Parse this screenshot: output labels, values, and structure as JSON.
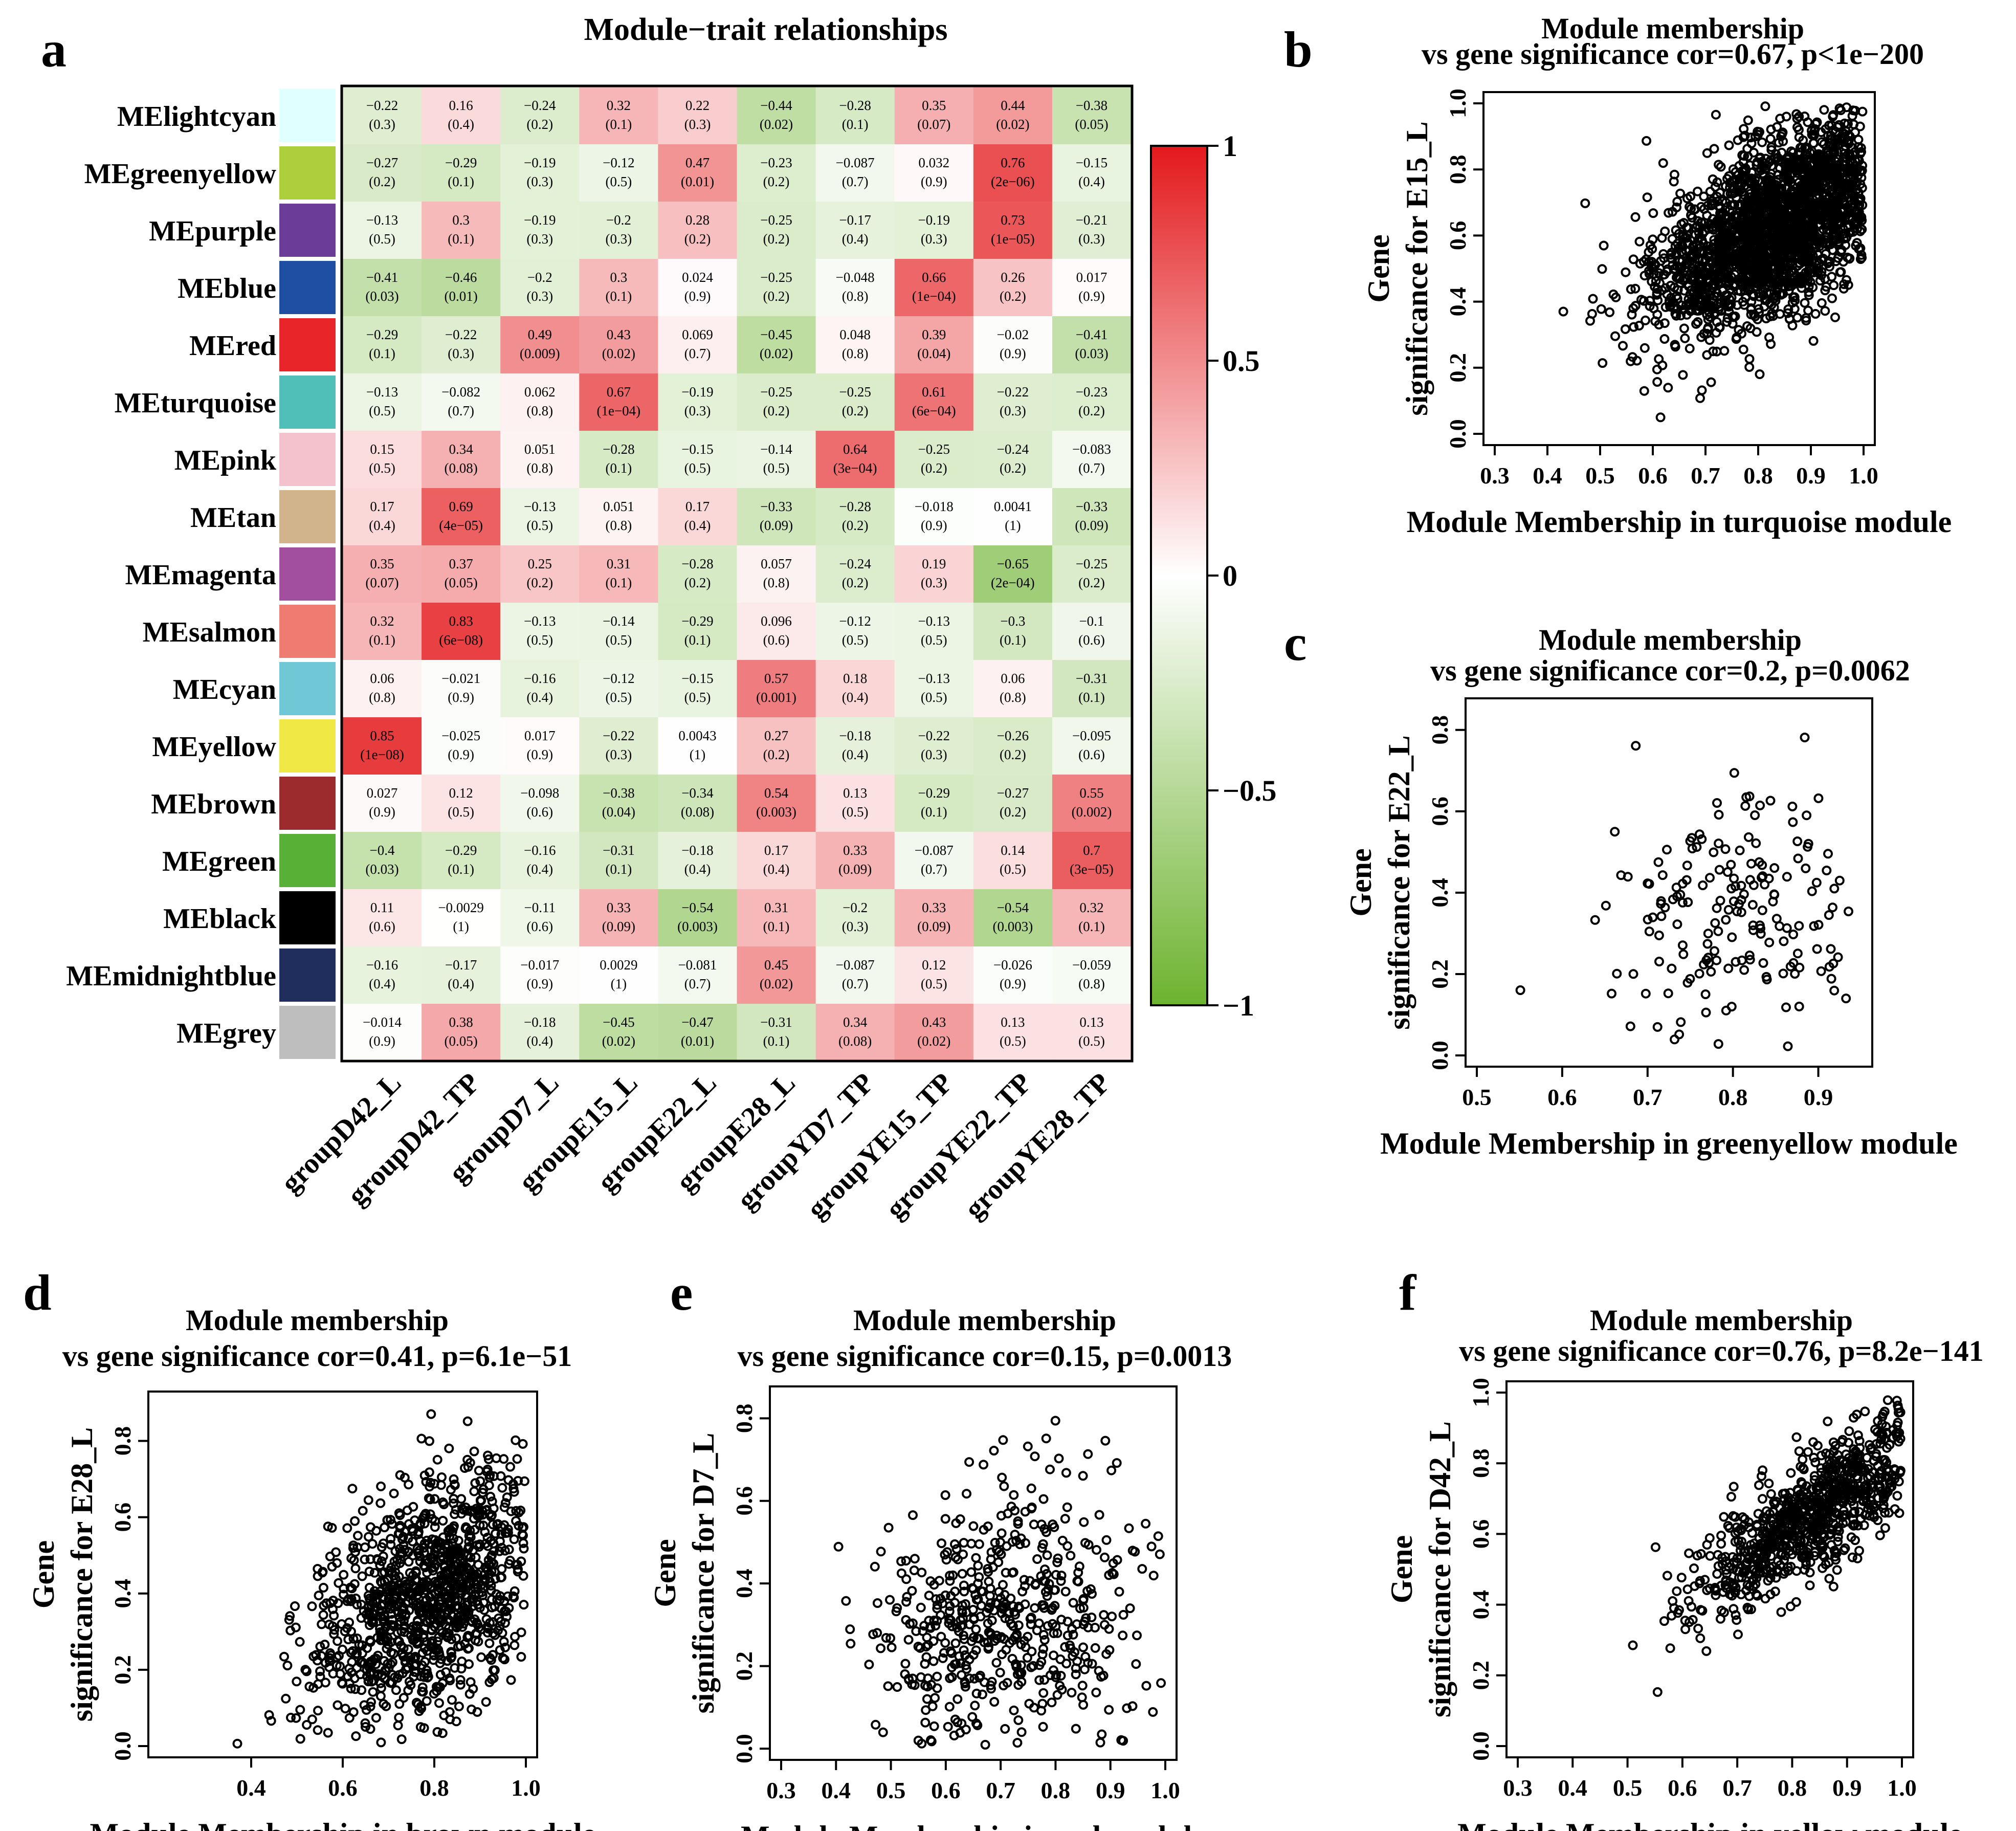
{
  "panels": {
    "a": {
      "label": "a",
      "title": "Module−trait relationships",
      "modules": [
        "MElightcyan",
        "MEgreenyellow",
        "MEpurple",
        "MEblue",
        "MEred",
        "MEturquoise",
        "MEpink",
        "MEtan",
        "MEmagenta",
        "MEsalmon",
        "MEcyan",
        "MEyellow",
        "MEbrown",
        "MEgreen",
        "MEblack",
        "MEmidnightblue",
        "MEgrey"
      ],
      "module_colors": [
        "#E0FFFF",
        "#ADCF3B",
        "#6B3D98",
        "#1E4FA2",
        "#E8262A",
        "#4FBFB8",
        "#F4C2CC",
        "#D1B48C",
        "#A24FA0",
        "#EE7C70",
        "#70C8D6",
        "#F0E844",
        "#9B2B2D",
        "#58B036",
        "#000000",
        "#1F2E5C",
        "#BEBEBE"
      ],
      "traits": [
        "groupD42_L",
        "groupD42_TP",
        "groupD7_L",
        "groupE15_L",
        "groupE22_L",
        "groupE28_L",
        "groupYD7_TP",
        "groupYE15_TP",
        "groupYE22_TP",
        "groupYE28_TP"
      ],
      "cor": [
        [
          "−0.22",
          "0.16",
          "−0.24",
          "0.32",
          "0.22",
          "−0.44",
          "−0.28",
          "0.35",
          "0.44",
          "−0.38"
        ],
        [
          "−0.27",
          "−0.29",
          "−0.19",
          "−0.12",
          "0.47",
          "−0.23",
          "−0.087",
          "0.032",
          "0.76",
          "−0.15"
        ],
        [
          "−0.13",
          "0.3",
          "−0.19",
          "−0.2",
          "0.28",
          "−0.25",
          "−0.17",
          "−0.19",
          "0.73",
          "−0.21"
        ],
        [
          "−0.41",
          "−0.46",
          "−0.2",
          "0.3",
          "0.024",
          "−0.25",
          "−0.048",
          "0.66",
          "0.26",
          "0.017"
        ],
        [
          "−0.29",
          "−0.22",
          "0.49",
          "0.43",
          "0.069",
          "−0.45",
          "0.048",
          "0.39",
          "−0.02",
          "−0.41"
        ],
        [
          "−0.13",
          "−0.082",
          "0.062",
          "0.67",
          "−0.19",
          "−0.25",
          "−0.25",
          "0.61",
          "−0.22",
          "−0.23"
        ],
        [
          "0.15",
          "0.34",
          "0.051",
          "−0.28",
          "−0.15",
          "−0.14",
          "0.64",
          "−0.25",
          "−0.24",
          "−0.083"
        ],
        [
          "0.17",
          "0.69",
          "−0.13",
          "0.051",
          "0.17",
          "−0.33",
          "−0.28",
          "−0.018",
          "0.0041",
          "−0.33"
        ],
        [
          "0.35",
          "0.37",
          "0.25",
          "0.31",
          "−0.28",
          "0.057",
          "−0.24",
          "0.19",
          "−0.65",
          "−0.25"
        ],
        [
          "0.32",
          "0.83",
          "−0.13",
          "−0.14",
          "−0.29",
          "0.096",
          "−0.12",
          "−0.13",
          "−0.3",
          "−0.1"
        ],
        [
          "0.06",
          "−0.021",
          "−0.16",
          "−0.12",
          "−0.15",
          "0.57",
          "0.18",
          "−0.13",
          "0.06",
          "−0.31"
        ],
        [
          "0.85",
          "−0.025",
          "0.017",
          "−0.22",
          "0.0043",
          "0.27",
          "−0.18",
          "−0.22",
          "−0.26",
          "−0.095"
        ],
        [
          "0.027",
          "0.12",
          "−0.098",
          "−0.38",
          "−0.34",
          "0.54",
          "0.13",
          "−0.29",
          "−0.27",
          "0.55"
        ],
        [
          "−0.4",
          "−0.29",
          "−0.16",
          "−0.31",
          "−0.18",
          "0.17",
          "0.33",
          "−0.087",
          "0.14",
          "0.7"
        ],
        [
          "0.11",
          "−0.0029",
          "−0.11",
          "0.33",
          "−0.54",
          "0.31",
          "−0.2",
          "0.33",
          "−0.54",
          "0.32"
        ],
        [
          "−0.16",
          "−0.17",
          "−0.017",
          "0.0029",
          "−0.081",
          "0.45",
          "−0.087",
          "0.12",
          "−0.026",
          "−0.059"
        ],
        [
          "−0.014",
          "0.38",
          "−0.18",
          "−0.45",
          "−0.47",
          "−0.31",
          "0.34",
          "0.43",
          "0.13",
          "0.13"
        ]
      ],
      "pval": [
        [
          "(0.3)",
          "(0.4)",
          "(0.2)",
          "(0.1)",
          "(0.3)",
          "(0.02)",
          "(0.1)",
          "(0.07)",
          "(0.02)",
          "(0.05)"
        ],
        [
          "(0.2)",
          "(0.1)",
          "(0.3)",
          "(0.5)",
          "(0.01)",
          "(0.2)",
          "(0.7)",
          "(0.9)",
          "(2e−06)",
          "(0.4)"
        ],
        [
          "(0.5)",
          "(0.1)",
          "(0.3)",
          "(0.3)",
          "(0.2)",
          "(0.2)",
          "(0.4)",
          "(0.3)",
          "(1e−05)",
          "(0.3)"
        ],
        [
          "(0.03)",
          "(0.01)",
          "(0.3)",
          "(0.1)",
          "(0.9)",
          "(0.2)",
          "(0.8)",
          "(1e−04)",
          "(0.2)",
          "(0.9)"
        ],
        [
          "(0.1)",
          "(0.3)",
          "(0.009)",
          "(0.02)",
          "(0.7)",
          "(0.02)",
          "(0.8)",
          "(0.04)",
          "(0.9)",
          "(0.03)"
        ],
        [
          "(0.5)",
          "(0.7)",
          "(0.8)",
          "(1e−04)",
          "(0.3)",
          "(0.2)",
          "(0.2)",
          "(6e−04)",
          "(0.3)",
          "(0.2)"
        ],
        [
          "(0.5)",
          "(0.08)",
          "(0.8)",
          "(0.1)",
          "(0.5)",
          "(0.5)",
          "(3e−04)",
          "(0.2)",
          "(0.2)",
          "(0.7)"
        ],
        [
          "(0.4)",
          "(4e−05)",
          "(0.5)",
          "(0.8)",
          "(0.4)",
          "(0.09)",
          "(0.2)",
          "(0.9)",
          "(1)",
          "(0.09)"
        ],
        [
          "(0.07)",
          "(0.05)",
          "(0.2)",
          "(0.1)",
          "(0.2)",
          "(0.8)",
          "(0.2)",
          "(0.3)",
          "(2e−04)",
          "(0.2)"
        ],
        [
          "(0.1)",
          "(6e−08)",
          "(0.5)",
          "(0.5)",
          "(0.1)",
          "(0.6)",
          "(0.5)",
          "(0.5)",
          "(0.1)",
          "(0.6)"
        ],
        [
          "(0.8)",
          "(0.9)",
          "(0.4)",
          "(0.5)",
          "(0.5)",
          "(0.001)",
          "(0.4)",
          "(0.5)",
          "(0.8)",
          "(0.1)"
        ],
        [
          "(1e−08)",
          "(0.9)",
          "(0.9)",
          "(0.3)",
          "(1)",
          "(0.2)",
          "(0.4)",
          "(0.3)",
          "(0.2)",
          "(0.6)"
        ],
        [
          "(0.9)",
          "(0.5)",
          "(0.6)",
          "(0.04)",
          "(0.08)",
          "(0.003)",
          "(0.5)",
          "(0.1)",
          "(0.2)",
          "(0.002)"
        ],
        [
          "(0.03)",
          "(0.1)",
          "(0.4)",
          "(0.1)",
          "(0.4)",
          "(0.4)",
          "(0.09)",
          "(0.7)",
          "(0.5)",
          "(3e−05)"
        ],
        [
          "(0.6)",
          "(1)",
          "(0.6)",
          "(0.09)",
          "(0.003)",
          "(0.1)",
          "(0.3)",
          "(0.09)",
          "(0.003)",
          "(0.1)"
        ],
        [
          "(0.4)",
          "(0.4)",
          "(0.9)",
          "(1)",
          "(0.7)",
          "(0.02)",
          "(0.7)",
          "(0.5)",
          "(0.9)",
          "(0.8)"
        ],
        [
          "(0.9)",
          "(0.05)",
          "(0.4)",
          "(0.02)",
          "(0.01)",
          "(0.1)",
          "(0.08)",
          "(0.02)",
          "(0.5)",
          "(0.5)"
        ]
      ],
      "colorbar_ticks": [
        "1",
        "0.5",
        "0",
        "−0.5",
        "−1"
      ]
    },
    "b": {
      "label": "b",
      "title1": "Module membership",
      "title2": "vs gene significance cor=0.67, p<1e−200",
      "xlabel": "Module Membership in turquoise module",
      "ylabel1": "Gene",
      "ylabel2": "significance for E15_L",
      "xticks": [
        "0.3",
        "0.4",
        "0.5",
        "0.6",
        "0.7",
        "0.8",
        "0.9",
        "1.0"
      ],
      "yticks": [
        "0.0",
        "0.2",
        "0.4",
        "0.6",
        "0.8",
        "1.0"
      ]
    },
    "c": {
      "label": "c",
      "title1": "Module membership",
      "title2": "vs gene significance cor=0.2, p=0.0062",
      "xlabel": "Module Membership in greenyellow module",
      "ylabel1": "Gene",
      "ylabel2": "significance for E22_L",
      "xticks": [
        "0.5",
        "0.6",
        "0.7",
        "0.8",
        "0.9"
      ],
      "yticks": [
        "0.0",
        "0.2",
        "0.4",
        "0.6",
        "0.8"
      ]
    },
    "d": {
      "label": "d",
      "title1": "Module membership",
      "title2": "vs gene significance cor=0.41, p=6.1e−51",
      "xlabel": "Module Membership in brown module",
      "ylabel1": "Gene",
      "ylabel2": "significance for E28_L",
      "xticks": [
        "0.4",
        "0.6",
        "0.8",
        "1.0"
      ],
      "yticks": [
        "0.0",
        "0.2",
        "0.4",
        "0.6",
        "0.8"
      ]
    },
    "e": {
      "label": "e",
      "title1": "Module membership",
      "title2": "vs gene significance cor=0.15, p=0.0013",
      "xlabel": "Module Membership in red module",
      "ylabel1": "Gene",
      "ylabel2": "significance for D7_L",
      "xticks": [
        "0.3",
        "0.4",
        "0.5",
        "0.6",
        "0.7",
        "0.8",
        "0.9",
        "1.0"
      ],
      "yticks": [
        "0.0",
        "0.2",
        "0.4",
        "0.6",
        "0.8"
      ]
    },
    "f": {
      "label": "f",
      "title1": "Module membership",
      "title2": "vs gene significance cor=0.76, p=8.2e−141",
      "xlabel": "Module Membership in yellow module",
      "ylabel1": "Gene",
      "ylabel2": "significance for D42_L",
      "xticks": [
        "0.3",
        "0.4",
        "0.5",
        "0.6",
        "0.7",
        "0.8",
        "0.9",
        "1.0"
      ],
      "yticks": [
        "0.0",
        "0.2",
        "0.4",
        "0.6",
        "0.8",
        "1.0"
      ]
    }
  },
  "chart_data": [
    {
      "type": "heatmap",
      "title": "Module−trait relationships",
      "zlim": [
        -1,
        1
      ],
      "colorscale": {
        "low": "#6DB32F",
        "mid": "#FFFFFF",
        "high": "#E3191C"
      }
    },
    {
      "type": "scatter",
      "panel": "b",
      "n_points": 2200,
      "cor": 0.67,
      "xlim": [
        0.3,
        1.0
      ],
      "ylim": [
        0.0,
        1.0
      ],
      "x_center": 0.85,
      "y_intercept": 0.0,
      "slope": 0.75,
      "spread": 0.13
    },
    {
      "type": "scatter",
      "panel": "c",
      "n_points": 180,
      "cor": 0.2,
      "xlim": [
        0.5,
        0.95
      ],
      "ylim": [
        0.0,
        0.85
      ],
      "x_center": 0.8,
      "y_intercept": 0.05,
      "slope": 0.38,
      "spread": 0.16
    },
    {
      "type": "scatter",
      "panel": "d",
      "n_points": 1100,
      "cor": 0.41,
      "xlim": [
        0.2,
        1.0
      ],
      "ylim": [
        0.0,
        0.9
      ],
      "x_center": 0.8,
      "y_intercept": -0.05,
      "slope": 0.55,
      "spread": 0.15
    },
    {
      "type": "scatter",
      "panel": "e",
      "n_points": 520,
      "cor": 0.15,
      "xlim": [
        0.3,
        1.0
      ],
      "ylim": [
        0.0,
        0.85
      ],
      "x_center": 0.7,
      "y_intercept": 0.12,
      "slope": 0.25,
      "spread": 0.17
    },
    {
      "type": "scatter",
      "panel": "f",
      "n_points": 800,
      "cor": 0.76,
      "xlim": [
        0.3,
        1.0
      ],
      "ylim": [
        0.0,
        1.0
      ],
      "x_center": 0.85,
      "y_intercept": -0.25,
      "slope": 1.08,
      "spread": 0.085
    }
  ]
}
